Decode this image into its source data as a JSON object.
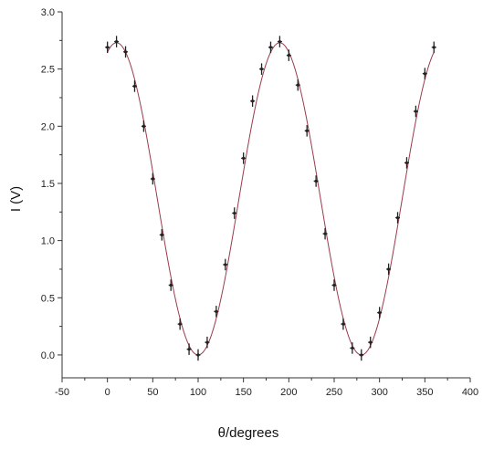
{
  "chart_data": {
    "type": "scatter",
    "title": "",
    "xlabel": "θ/degrees",
    "ylabel": "I (V)",
    "xlim": [
      -50,
      400
    ],
    "ylim": [
      -0.2,
      3.0
    ],
    "xticks": [
      "-50",
      "0",
      "50",
      "100",
      "150",
      "200",
      "250",
      "300",
      "350",
      "400"
    ],
    "yticks": [
      "0.0",
      "0.5",
      "1.0",
      "1.5",
      "2.0",
      "2.5",
      "3.0"
    ],
    "grid": false,
    "legend": "none",
    "colors": {
      "points": "#222222",
      "fit": "#9b3b4b",
      "axis": "#333333"
    },
    "series": [
      {
        "kind": "points-with-error-bars",
        "x": [
          0,
          10,
          20,
          30,
          40,
          50,
          60,
          70,
          80,
          90,
          100,
          110,
          120,
          130,
          140,
          150,
          160,
          170,
          180,
          190,
          200,
          210,
          220,
          230,
          240,
          250,
          260,
          270,
          280,
          290,
          300,
          310,
          320,
          330,
          340,
          350,
          360
        ],
        "y": [
          2.69,
          2.74,
          2.65,
          2.35,
          2.0,
          1.54,
          1.05,
          0.61,
          0.27,
          0.05,
          0.0,
          0.11,
          0.38,
          0.79,
          1.24,
          1.72,
          2.22,
          2.5,
          2.69,
          2.74,
          2.62,
          2.36,
          1.96,
          1.52,
          1.06,
          0.61,
          0.27,
          0.06,
          0.0,
          0.11,
          0.37,
          0.75,
          1.2,
          1.68,
          2.13,
          2.46,
          2.69
        ],
        "yerr": 0.05,
        "xerr": 2.5
      },
      {
        "kind": "fit-curve",
        "equation": "I = 2.73 cos^2(θ - 10°)"
      }
    ]
  }
}
